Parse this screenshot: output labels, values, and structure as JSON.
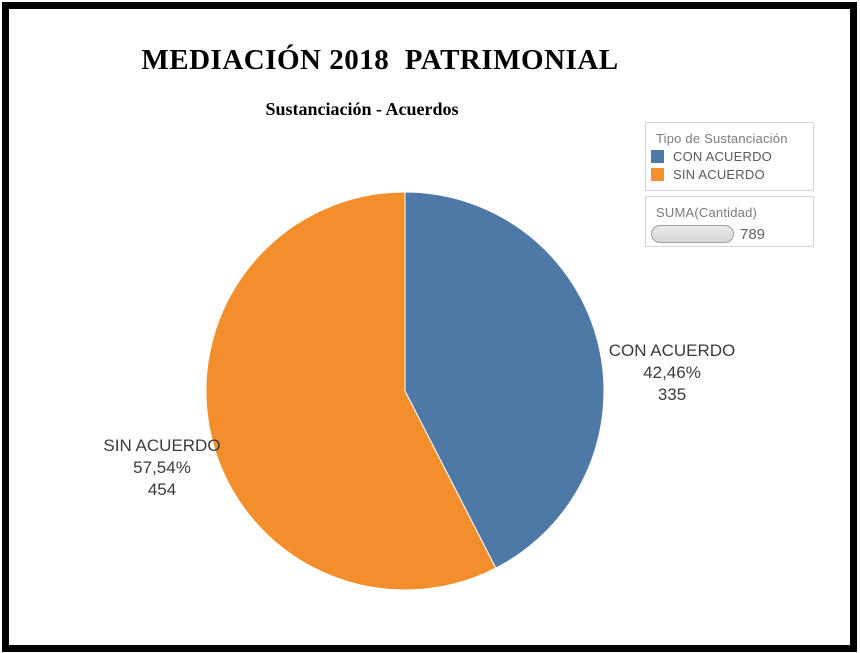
{
  "header": {
    "title": "MEDIACIÓN 2018  PATRIMONIAL",
    "subtitle": "Sustanciación - Acuerdos"
  },
  "chart_data": {
    "type": "pie",
    "title": "MEDIACIÓN 2018  PATRIMONIAL",
    "subtitle": "Sustanciación - Acuerdos",
    "start_angle_deg": 0,
    "direction": "clockwise",
    "total": 789,
    "slices": [
      {
        "label": "CON ACUERDO",
        "value": 335,
        "pct": 42.46,
        "pct_label": "42,46%",
        "color": "#4e79a7"
      },
      {
        "label": "SIN ACUERDO",
        "value": 454,
        "pct": 57.54,
        "pct_label": "57,54%",
        "color": "#f28e2b"
      }
    ]
  },
  "legend": {
    "title": "Tipo de Sustanciación",
    "items": [
      {
        "label": "CON ACUERDO",
        "color": "#4e79a7"
      },
      {
        "label": "SIN ACUERDO",
        "color": "#f28e2b"
      }
    ]
  },
  "size_legend": {
    "title": "SUMA(Cantidad)",
    "value": "789"
  },
  "colors": {
    "frame_border": "#000000",
    "slice_label_text": "#3b3b3b",
    "legend_title_text": "#7b7b7b",
    "legend_item_text": "#5a5a5a",
    "legend_border": "#d6d6d6"
  }
}
